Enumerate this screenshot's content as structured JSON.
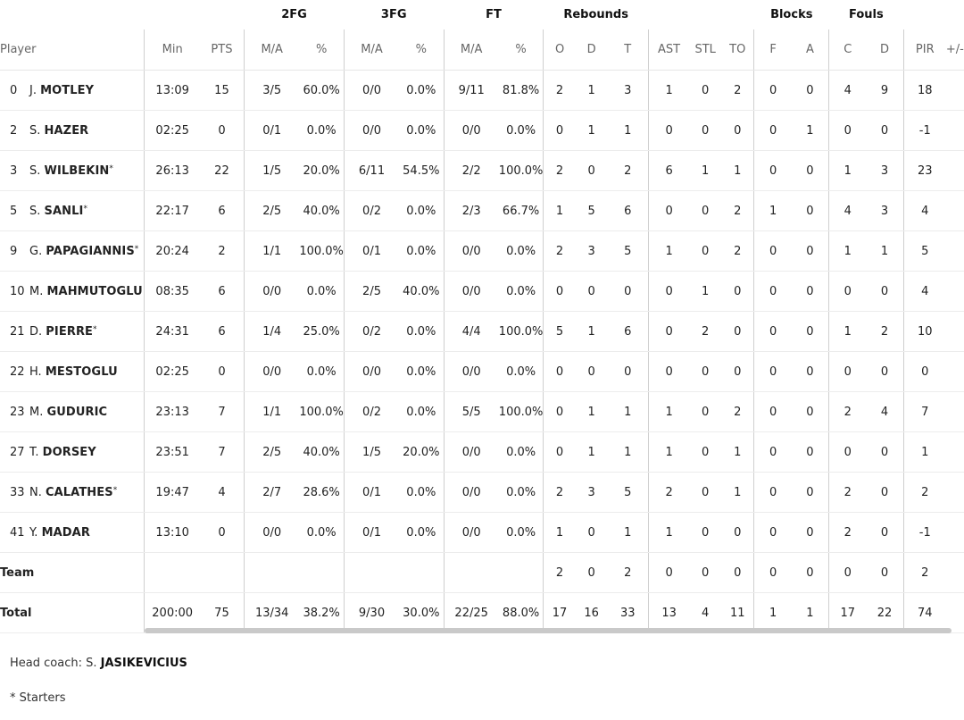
{
  "groups": {
    "fg2": "2FG",
    "fg3": "3FG",
    "ft": "FT",
    "reb": "Rebounds",
    "blk": "Blocks",
    "fouls": "Fouls"
  },
  "headers": {
    "player": "Player",
    "min": "Min",
    "pts": "PTS",
    "fg2_ma": "M/A",
    "fg2_pct": "%",
    "fg3_ma": "M/A",
    "fg3_pct": "%",
    "ft_ma": "M/A",
    "ft_pct": "%",
    "reb_o": "O",
    "reb_d": "D",
    "reb_t": "T",
    "ast": "AST",
    "stl": "STL",
    "to": "TO",
    "blk_f": "F",
    "blk_a": "A",
    "foul_c": "C",
    "foul_d": "D",
    "pir": "PIR",
    "pm": "+/-"
  },
  "players": [
    {
      "num": "0",
      "initial": "J.",
      "surname": "MOTLEY",
      "starter": false,
      "min": "13:09",
      "pts": "15",
      "fg2_ma": "3/5",
      "fg2_pct": "60.0%",
      "fg3_ma": "0/0",
      "fg3_pct": "0.0%",
      "ft_ma": "9/11",
      "ft_pct": "81.8%",
      "reb_o": "2",
      "reb_d": "1",
      "reb_t": "3",
      "ast": "1",
      "stl": "0",
      "to": "2",
      "blk_f": "0",
      "blk_a": "0",
      "foul_c": "4",
      "foul_d": "9",
      "pir": "18",
      "pm": ""
    },
    {
      "num": "2",
      "initial": "S.",
      "surname": "HAZER",
      "starter": false,
      "min": "02:25",
      "pts": "0",
      "fg2_ma": "0/1",
      "fg2_pct": "0.0%",
      "fg3_ma": "0/0",
      "fg3_pct": "0.0%",
      "ft_ma": "0/0",
      "ft_pct": "0.0%",
      "reb_o": "0",
      "reb_d": "1",
      "reb_t": "1",
      "ast": "0",
      "stl": "0",
      "to": "0",
      "blk_f": "0",
      "blk_a": "1",
      "foul_c": "0",
      "foul_d": "0",
      "pir": "-1",
      "pm": ""
    },
    {
      "num": "3",
      "initial": "S.",
      "surname": "WILBEKIN",
      "starter": true,
      "min": "26:13",
      "pts": "22",
      "fg2_ma": "1/5",
      "fg2_pct": "20.0%",
      "fg3_ma": "6/11",
      "fg3_pct": "54.5%",
      "ft_ma": "2/2",
      "ft_pct": "100.0%",
      "reb_o": "2",
      "reb_d": "0",
      "reb_t": "2",
      "ast": "6",
      "stl": "1",
      "to": "1",
      "blk_f": "0",
      "blk_a": "0",
      "foul_c": "1",
      "foul_d": "3",
      "pir": "23",
      "pm": ""
    },
    {
      "num": "5",
      "initial": "S.",
      "surname": "SANLI",
      "starter": true,
      "min": "22:17",
      "pts": "6",
      "fg2_ma": "2/5",
      "fg2_pct": "40.0%",
      "fg3_ma": "0/2",
      "fg3_pct": "0.0%",
      "ft_ma": "2/3",
      "ft_pct": "66.7%",
      "reb_o": "1",
      "reb_d": "5",
      "reb_t": "6",
      "ast": "0",
      "stl": "0",
      "to": "2",
      "blk_f": "1",
      "blk_a": "0",
      "foul_c": "4",
      "foul_d": "3",
      "pir": "4",
      "pm": ""
    },
    {
      "num": "9",
      "initial": "G.",
      "surname": "PAPAGIANNIS",
      "starter": true,
      "min": "20:24",
      "pts": "2",
      "fg2_ma": "1/1",
      "fg2_pct": "100.0%",
      "fg3_ma": "0/1",
      "fg3_pct": "0.0%",
      "ft_ma": "0/0",
      "ft_pct": "0.0%",
      "reb_o": "2",
      "reb_d": "3",
      "reb_t": "5",
      "ast": "1",
      "stl": "0",
      "to": "2",
      "blk_f": "0",
      "blk_a": "0",
      "foul_c": "1",
      "foul_d": "1",
      "pir": "5",
      "pm": ""
    },
    {
      "num": "10",
      "initial": "M.",
      "surname": "MAHMUTOGLU",
      "starter": false,
      "min": "08:35",
      "pts": "6",
      "fg2_ma": "0/0",
      "fg2_pct": "0.0%",
      "fg3_ma": "2/5",
      "fg3_pct": "40.0%",
      "ft_ma": "0/0",
      "ft_pct": "0.0%",
      "reb_o": "0",
      "reb_d": "0",
      "reb_t": "0",
      "ast": "0",
      "stl": "1",
      "to": "0",
      "blk_f": "0",
      "blk_a": "0",
      "foul_c": "0",
      "foul_d": "0",
      "pir": "4",
      "pm": ""
    },
    {
      "num": "21",
      "initial": "D.",
      "surname": "PIERRE",
      "starter": true,
      "min": "24:31",
      "pts": "6",
      "fg2_ma": "1/4",
      "fg2_pct": "25.0%",
      "fg3_ma": "0/2",
      "fg3_pct": "0.0%",
      "ft_ma": "4/4",
      "ft_pct": "100.0%",
      "reb_o": "5",
      "reb_d": "1",
      "reb_t": "6",
      "ast": "0",
      "stl": "2",
      "to": "0",
      "blk_f": "0",
      "blk_a": "0",
      "foul_c": "1",
      "foul_d": "2",
      "pir": "10",
      "pm": ""
    },
    {
      "num": "22",
      "initial": "H.",
      "surname": "MESTOGLU",
      "starter": false,
      "min": "02:25",
      "pts": "0",
      "fg2_ma": "0/0",
      "fg2_pct": "0.0%",
      "fg3_ma": "0/0",
      "fg3_pct": "0.0%",
      "ft_ma": "0/0",
      "ft_pct": "0.0%",
      "reb_o": "0",
      "reb_d": "0",
      "reb_t": "0",
      "ast": "0",
      "stl": "0",
      "to": "0",
      "blk_f": "0",
      "blk_a": "0",
      "foul_c": "0",
      "foul_d": "0",
      "pir": "0",
      "pm": ""
    },
    {
      "num": "23",
      "initial": "M.",
      "surname": "GUDURIC",
      "starter": false,
      "min": "23:13",
      "pts": "7",
      "fg2_ma": "1/1",
      "fg2_pct": "100.0%",
      "fg3_ma": "0/2",
      "fg3_pct": "0.0%",
      "ft_ma": "5/5",
      "ft_pct": "100.0%",
      "reb_o": "0",
      "reb_d": "1",
      "reb_t": "1",
      "ast": "1",
      "stl": "0",
      "to": "2",
      "blk_f": "0",
      "blk_a": "0",
      "foul_c": "2",
      "foul_d": "4",
      "pir": "7",
      "pm": ""
    },
    {
      "num": "27",
      "initial": "T.",
      "surname": "DORSEY",
      "starter": false,
      "min": "23:51",
      "pts": "7",
      "fg2_ma": "2/5",
      "fg2_pct": "40.0%",
      "fg3_ma": "1/5",
      "fg3_pct": "20.0%",
      "ft_ma": "0/0",
      "ft_pct": "0.0%",
      "reb_o": "0",
      "reb_d": "1",
      "reb_t": "1",
      "ast": "1",
      "stl": "0",
      "to": "1",
      "blk_f": "0",
      "blk_a": "0",
      "foul_c": "0",
      "foul_d": "0",
      "pir": "1",
      "pm": ""
    },
    {
      "num": "33",
      "initial": "N.",
      "surname": "CALATHES",
      "starter": true,
      "min": "19:47",
      "pts": "4",
      "fg2_ma": "2/7",
      "fg2_pct": "28.6%",
      "fg3_ma": "0/1",
      "fg3_pct": "0.0%",
      "ft_ma": "0/0",
      "ft_pct": "0.0%",
      "reb_o": "2",
      "reb_d": "3",
      "reb_t": "5",
      "ast": "2",
      "stl": "0",
      "to": "1",
      "blk_f": "0",
      "blk_a": "0",
      "foul_c": "2",
      "foul_d": "0",
      "pir": "2",
      "pm": ""
    },
    {
      "num": "41",
      "initial": "Y.",
      "surname": "MADAR",
      "starter": false,
      "min": "13:10",
      "pts": "0",
      "fg2_ma": "0/0",
      "fg2_pct": "0.0%",
      "fg3_ma": "0/1",
      "fg3_pct": "0.0%",
      "ft_ma": "0/0",
      "ft_pct": "0.0%",
      "reb_o": "1",
      "reb_d": "0",
      "reb_t": "1",
      "ast": "1",
      "stl": "0",
      "to": "0",
      "blk_f": "0",
      "blk_a": "0",
      "foul_c": "2",
      "foul_d": "0",
      "pir": "-1",
      "pm": ""
    }
  ],
  "team": {
    "label": "Team",
    "min": "",
    "pts": "",
    "fg2_ma": "",
    "fg2_pct": "",
    "fg3_ma": "",
    "fg3_pct": "",
    "ft_ma": "",
    "ft_pct": "",
    "reb_o": "2",
    "reb_d": "0",
    "reb_t": "2",
    "ast": "0",
    "stl": "0",
    "to": "0",
    "blk_f": "0",
    "blk_a": "0",
    "foul_c": "0",
    "foul_d": "0",
    "pir": "2",
    "pm": ""
  },
  "total": {
    "label": "Total",
    "min": "200:00",
    "pts": "75",
    "fg2_ma": "13/34",
    "fg2_pct": "38.2%",
    "fg3_ma": "9/30",
    "fg3_pct": "30.0%",
    "ft_ma": "22/25",
    "ft_pct": "88.0%",
    "reb_o": "17",
    "reb_d": "16",
    "reb_t": "33",
    "ast": "13",
    "stl": "4",
    "to": "11",
    "blk_f": "1",
    "blk_a": "1",
    "foul_c": "17",
    "foul_d": "22",
    "pir": "74",
    "pm": ""
  },
  "coach": {
    "label": "Head coach:",
    "initial": "S.",
    "surname": "JASIKEVICIUS"
  },
  "footnote": "* Starters",
  "starter_mark": "*"
}
